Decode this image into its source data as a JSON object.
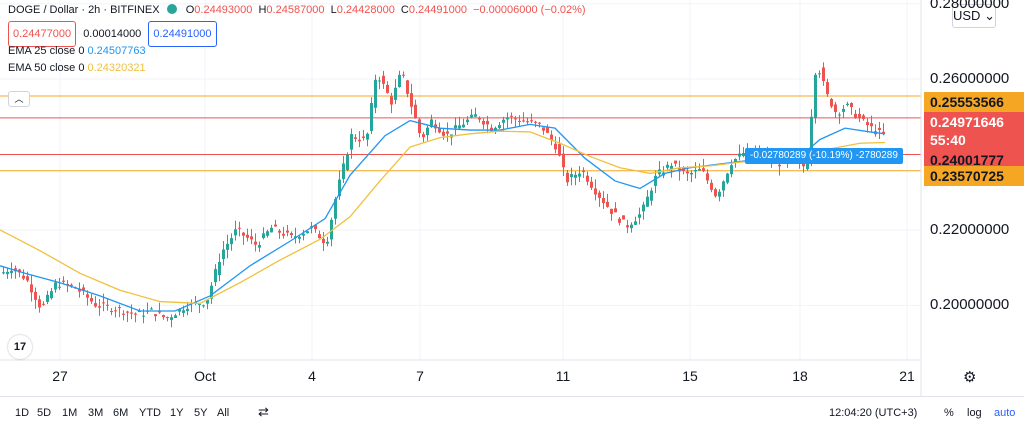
{
  "header": {
    "symbol": "DOGE / Dollar · 2h · BITFINEX",
    "ohlc": [
      {
        "key": "O",
        "value": "0.24493000"
      },
      {
        "key": "H",
        "value": "0.24587000"
      },
      {
        "key": "L",
        "value": "0.24428000"
      },
      {
        "key": "C",
        "value": "0.24491000"
      }
    ],
    "change": "−0.00006000 (−0.02%)",
    "bid": "0.24477000",
    "spread": "0.00014000",
    "ask": "0.24491000"
  },
  "indicators": [
    {
      "name": "EMA 25 close 0",
      "value": "0.24507763",
      "color": "#2196f3"
    },
    {
      "name": "EMA 50 close 0",
      "value": "0.24320321",
      "color": "#f0c03c"
    }
  ],
  "currency": "USD",
  "measure_label": "-0.02780289 (-10.19%) -2780289",
  "price_labels": [
    {
      "text": "0.25553566",
      "color": "#f5a623",
      "textColor": "#131722"
    },
    {
      "text": "0.24971646",
      "color": "#ef5350",
      "textColor": "#ffffff"
    },
    {
      "text": "55:40",
      "color": "#ef5350",
      "textColor": "#ffffff"
    },
    {
      "text": "0.24001777",
      "color": "#ef5350",
      "textColor": "#131722"
    },
    {
      "text": "0.23570725",
      "color": "#f5a623",
      "textColor": "#131722"
    }
  ],
  "timeframes": [
    "1D",
    "5D",
    "1M",
    "3M",
    "6M",
    "YTD",
    "1Y",
    "5Y",
    "All"
  ],
  "clock": "12:04:20 (UTC+3)",
  "scale_opts": [
    "%",
    "log",
    "auto"
  ],
  "chart_data": {
    "type": "candlestick",
    "title": "DOGE / Dollar · 2h · BITFINEX",
    "x_ticks": [
      "27",
      "Oct",
      "4",
      "7",
      "11",
      "15",
      "18",
      "21"
    ],
    "y_ticks": [
      "0.28000000",
      "0.26000000",
      "0.24000000",
      "0.22000000",
      "0.20000000"
    ],
    "ylim": [
      0.1855,
      0.281
    ],
    "horizontal_levels": [
      {
        "value": 0.25553566,
        "color": "#f5a623"
      },
      {
        "value": 0.24971646,
        "color": "#ef5350"
      },
      {
        "value": 0.24001777,
        "color": "#ef5350"
      },
      {
        "value": 0.23570725,
        "color": "#f5a623"
      }
    ],
    "series": [
      {
        "name": "EMA 25 close 0",
        "color": "#2196f3",
        "points": [
          [
            0,
            0.2105
          ],
          [
            25,
            0.2085
          ],
          [
            60,
            0.206
          ],
          [
            100,
            0.2025
          ],
          [
            140,
            0.1985
          ],
          [
            175,
            0.1985
          ],
          [
            210,
            0.2025
          ],
          [
            250,
            0.2105
          ],
          [
            290,
            0.217
          ],
          [
            325,
            0.223
          ],
          [
            350,
            0.2345
          ],
          [
            385,
            0.245
          ],
          [
            410,
            0.249
          ],
          [
            440,
            0.247
          ],
          [
            470,
            0.2465
          ],
          [
            500,
            0.2465
          ],
          [
            530,
            0.248
          ],
          [
            555,
            0.247
          ],
          [
            585,
            0.239
          ],
          [
            615,
            0.233
          ],
          [
            640,
            0.231
          ],
          [
            665,
            0.235
          ],
          [
            690,
            0.2365
          ],
          [
            720,
            0.2375
          ],
          [
            750,
            0.2385
          ],
          [
            780,
            0.2395
          ],
          [
            800,
            0.2395
          ],
          [
            820,
            0.244
          ],
          [
            845,
            0.247
          ],
          [
            870,
            0.246
          ],
          [
            885,
            0.2455
          ]
        ]
      },
      {
        "name": "EMA 50 close 0",
        "color": "#f0c03c",
        "points": [
          [
            0,
            0.22
          ],
          [
            40,
            0.2145
          ],
          [
            80,
            0.2085
          ],
          [
            120,
            0.204
          ],
          [
            160,
            0.201
          ],
          [
            200,
            0.2005
          ],
          [
            240,
            0.206
          ],
          [
            280,
            0.212
          ],
          [
            320,
            0.2175
          ],
          [
            350,
            0.2235
          ],
          [
            380,
            0.233
          ],
          [
            410,
            0.242
          ],
          [
            440,
            0.2445
          ],
          [
            470,
            0.2455
          ],
          [
            500,
            0.2462
          ],
          [
            530,
            0.246
          ],
          [
            560,
            0.243
          ],
          [
            590,
            0.2395
          ],
          [
            620,
            0.2365
          ],
          [
            650,
            0.235
          ],
          [
            680,
            0.2365
          ],
          [
            710,
            0.237
          ],
          [
            740,
            0.238
          ],
          [
            770,
            0.2385
          ],
          [
            800,
            0.239
          ],
          [
            830,
            0.2415
          ],
          [
            860,
            0.243
          ],
          [
            885,
            0.2432
          ]
        ]
      },
      {
        "name": "price",
        "color": "#26a69a",
        "points": [
          [
            0,
            0.2085
          ],
          [
            10,
            0.21
          ],
          [
            25,
            0.207
          ],
          [
            40,
            0.199
          ],
          [
            55,
            0.206
          ],
          [
            75,
            0.2045
          ],
          [
            95,
            0.2
          ],
          [
            115,
            0.199
          ],
          [
            135,
            0.1975
          ],
          [
            150,
            0.1985
          ],
          [
            165,
            0.1965
          ],
          [
            185,
            0.2
          ],
          [
            205,
            0.201
          ],
          [
            220,
            0.214
          ],
          [
            235,
            0.22
          ],
          [
            255,
            0.216
          ],
          [
            270,
            0.2205
          ],
          [
            290,
            0.218
          ],
          [
            310,
            0.2205
          ],
          [
            325,
            0.2165
          ],
          [
            335,
            0.2295
          ],
          [
            350,
            0.245
          ],
          [
            365,
            0.2435
          ],
          [
            375,
            0.262
          ],
          [
            390,
            0.254
          ],
          [
            400,
            0.262
          ],
          [
            410,
            0.253
          ],
          [
            420,
            0.244
          ],
          [
            430,
            0.249
          ],
          [
            445,
            0.245
          ],
          [
            460,
            0.248
          ],
          [
            475,
            0.2505
          ],
          [
            490,
            0.247
          ],
          [
            505,
            0.25
          ],
          [
            520,
            0.249
          ],
          [
            540,
            0.2475
          ],
          [
            555,
            0.242
          ],
          [
            565,
            0.233
          ],
          [
            580,
            0.236
          ],
          [
            595,
            0.23
          ],
          [
            610,
            0.225
          ],
          [
            625,
            0.221
          ],
          [
            640,
            0.2245
          ],
          [
            655,
            0.2345
          ],
          [
            670,
            0.2375
          ],
          [
            685,
            0.2345
          ],
          [
            700,
            0.236
          ],
          [
            715,
            0.229
          ],
          [
            730,
            0.238
          ],
          [
            745,
            0.241
          ],
          [
            760,
            0.2395
          ],
          [
            780,
            0.2375
          ],
          [
            795,
            0.238
          ],
          [
            805,
            0.2365
          ],
          [
            815,
            0.265
          ],
          [
            825,
            0.256
          ],
          [
            835,
            0.251
          ],
          [
            845,
            0.253
          ],
          [
            860,
            0.249
          ],
          [
            875,
            0.246
          ],
          [
            885,
            0.2449
          ]
        ]
      }
    ]
  }
}
